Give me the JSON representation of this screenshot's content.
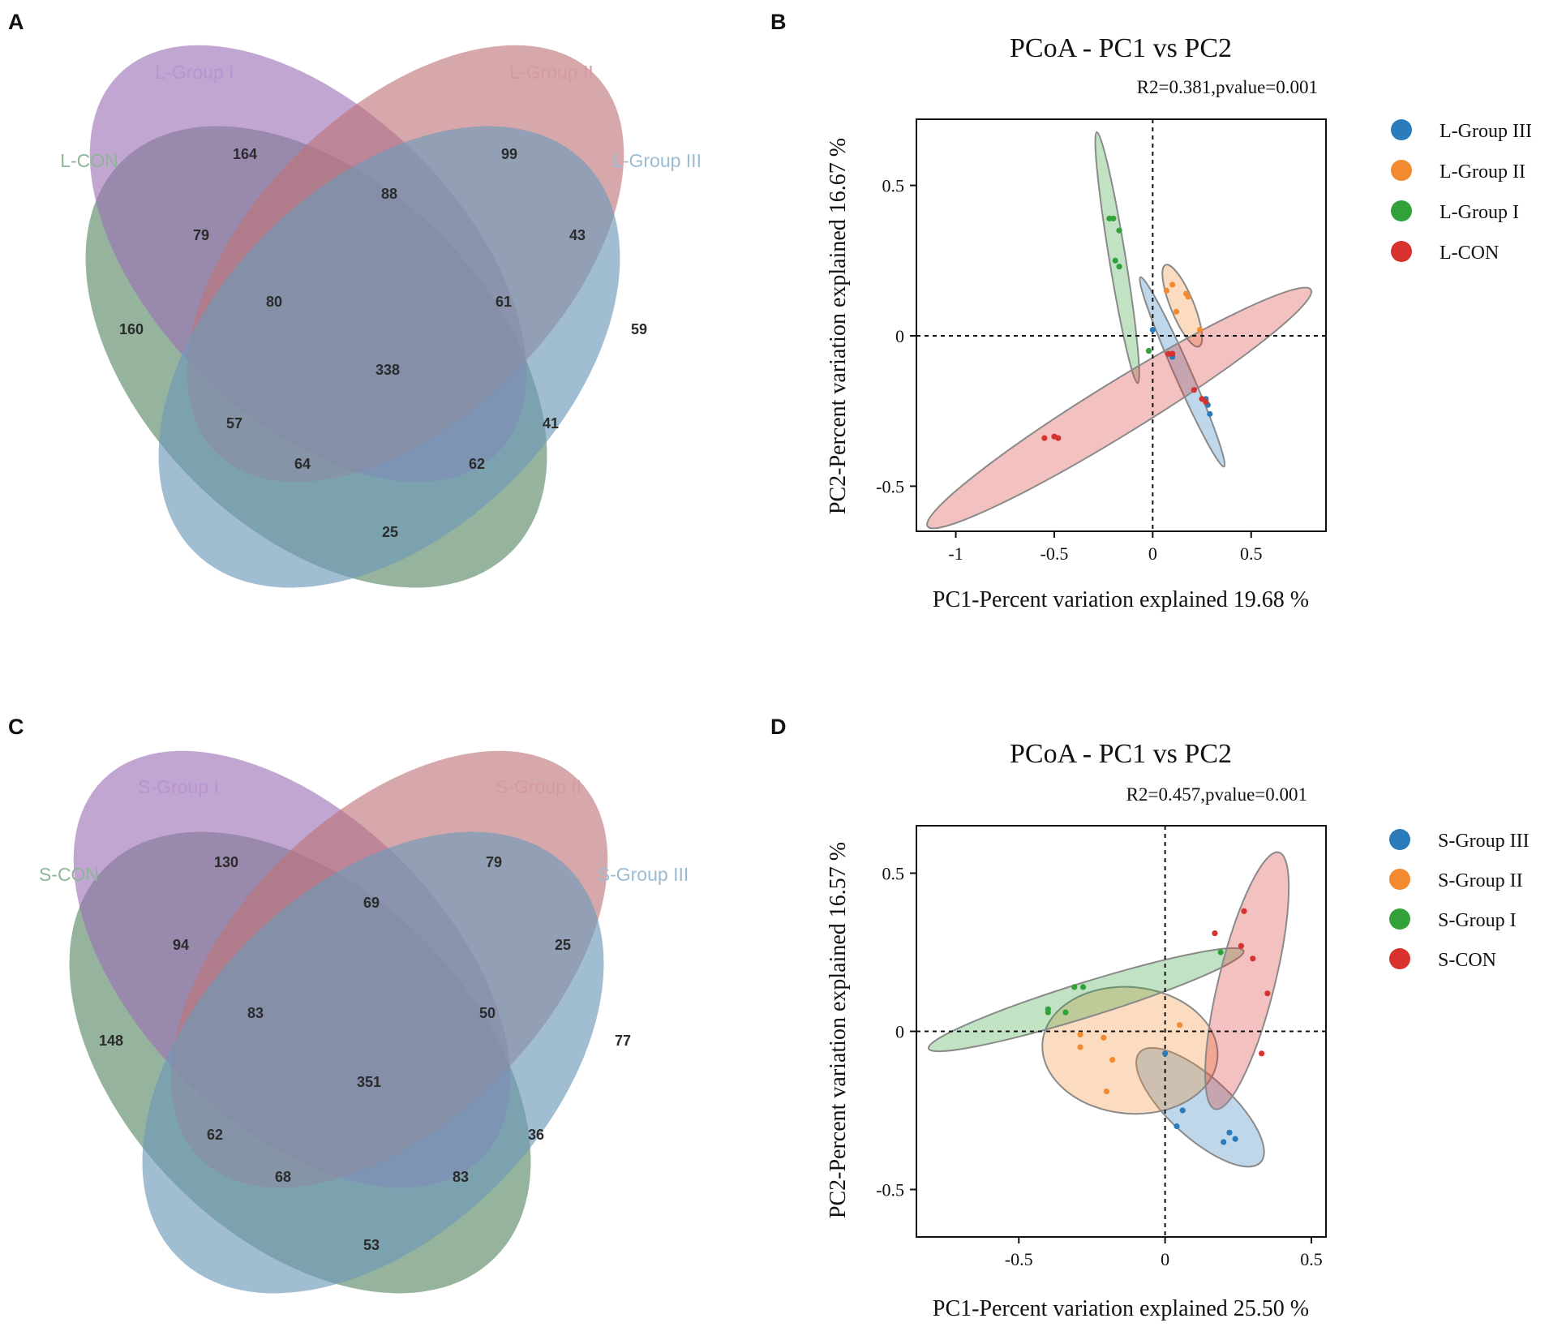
{
  "panels": {
    "A": {
      "letter": "A"
    },
    "B": {
      "letter": "B"
    },
    "C": {
      "letter": "C"
    },
    "D": {
      "letter": "D"
    }
  },
  "colors": {
    "con": "#5e8a68",
    "group1": "#9b6fb4",
    "group2": "#bf7378",
    "group3": "#6f9ab9",
    "blue": "#2b7bba",
    "orange": "#f28a2f",
    "green": "#33a13a",
    "red": "#d8322f"
  },
  "chart_data": [
    {
      "id": "venn-L",
      "type": "venn",
      "sets": [
        "L-CON",
        "L-Group I",
        "L-Group II",
        "L-Group III"
      ],
      "regions": {
        "L-CON only": 160,
        "L-Group I only": 164,
        "L-Group II only": 99,
        "L-Group III only": 59,
        "L-CON & L-Group I": 79,
        "L-Group I & L-Group II": 88,
        "L-Group II & L-Group III": 43,
        "L-CON & L-Group I & L-Group II": 80,
        "L-Group I & L-Group II & L-Group III": 61,
        "all four": 338,
        "L-CON & L-Group II": 57,
        "L-Group I & L-Group III": 41,
        "L-CON & L-Group II & L-Group III": 64,
        "L-CON & L-Group I & L-Group III": 62,
        "L-CON & L-Group III": 25
      }
    },
    {
      "id": "pcoa-L",
      "type": "scatter",
      "title": "PCoA - PC1 vs PC2",
      "stat": "R2=0.381,pvalue=0.001",
      "xlabel": "PC1-Percent variation explained 19.68 %",
      "ylabel": "PC2-Percent variation explained 16.67 %",
      "xlim": [
        -1.2,
        0.88
      ],
      "ylim": [
        -0.65,
        0.72
      ],
      "xticks": [
        -1,
        -0.5,
        0,
        0.5
      ],
      "xtick_labels": [
        "-1",
        "-0.5",
        "0",
        "0.5"
      ],
      "yticks": [
        -0.5,
        0,
        0.5
      ],
      "ytick_labels": [
        "-0.5",
        "0",
        "0.5"
      ],
      "legend": [
        "L-Group III",
        "L-Group II",
        "L-Group I",
        "L-CON"
      ],
      "series": [
        {
          "name": "L-Group III",
          "color": "#2b7bba",
          "points": [
            [
              0.0,
              0.02
            ],
            [
              0.1,
              -0.07
            ],
            [
              0.1,
              -0.06
            ],
            [
              0.27,
              -0.21
            ],
            [
              0.28,
              -0.23
            ],
            [
              0.29,
              -0.26
            ]
          ],
          "ellipse": {
            "cx": 0.15,
            "cy": -0.12,
            "rx": 0.38,
            "ry": 0.035,
            "angle": -56
          }
        },
        {
          "name": "L-Group II",
          "color": "#f28a2f",
          "points": [
            [
              0.07,
              0.15
            ],
            [
              0.1,
              0.17
            ],
            [
              0.12,
              0.08
            ],
            [
              0.17,
              0.14
            ],
            [
              0.18,
              0.13
            ],
            [
              0.24,
              0.02
            ]
          ],
          "ellipse": {
            "cx": 0.15,
            "cy": 0.1,
            "rx": 0.16,
            "ry": 0.05,
            "angle": -58
          }
        },
        {
          "name": "L-Group I",
          "color": "#33a13a",
          "points": [
            [
              -0.22,
              0.39
            ],
            [
              -0.2,
              0.39
            ],
            [
              -0.17,
              0.35
            ],
            [
              -0.19,
              0.25
            ],
            [
              -0.17,
              0.23
            ],
            [
              -0.02,
              -0.05
            ]
          ],
          "ellipse": {
            "cx": -0.18,
            "cy": 0.26,
            "rx": 0.43,
            "ry": 0.04,
            "angle": -76
          }
        },
        {
          "name": "L-CON",
          "color": "#d8322f",
          "points": [
            [
              -0.55,
              -0.34
            ],
            [
              -0.5,
              -0.335
            ],
            [
              -0.48,
              -0.34
            ],
            [
              0.08,
              -0.06
            ],
            [
              0.1,
              -0.06
            ],
            [
              0.21,
              -0.18
            ],
            [
              0.25,
              -0.21
            ],
            [
              0.27,
              -0.22
            ]
          ],
          "ellipse": {
            "cx": -0.17,
            "cy": -0.24,
            "rx": 1.05,
            "ry": 0.09,
            "angle": 22
          }
        }
      ]
    },
    {
      "id": "venn-S",
      "type": "venn",
      "sets": [
        "S-CON",
        "S-Group I",
        "S-Group II",
        "S-Group III"
      ],
      "regions": {
        "S-CON only": 148,
        "S-Group I only": 130,
        "S-Group II only": 79,
        "S-Group III only": 77,
        "S-CON & S-Group I": 94,
        "S-Group I & S-Group II": 69,
        "S-Group II & S-Group III": 25,
        "S-CON & S-Group I & S-Group II": 83,
        "S-Group I & S-Group II & S-Group III": 50,
        "all four": 351,
        "S-CON & S-Group II": 62,
        "S-Group I & S-Group III": 36,
        "S-CON & S-Group II & S-Group III": 68,
        "S-CON & S-Group I & S-Group III": 83,
        "S-CON & S-Group III": 53
      }
    },
    {
      "id": "pcoa-S",
      "type": "scatter",
      "title": "PCoA - PC1 vs PC2",
      "stat": "R2=0.457,pvalue=0.001",
      "xlabel": "PC1-Percent variation explained 25.50 %",
      "ylabel": "PC2-Percent variation explained 16.57 %",
      "xlim": [
        -0.85,
        0.55
      ],
      "ylim": [
        -0.65,
        0.65
      ],
      "xticks": [
        -0.5,
        0,
        0.5
      ],
      "xtick_labels": [
        "-0.5",
        "0",
        "0.5"
      ],
      "yticks": [
        -0.5,
        0,
        0.5
      ],
      "ytick_labels": [
        "-0.5",
        "0",
        "0.5"
      ],
      "legend": [
        "S-Group III",
        "S-Group II",
        "S-Group I",
        "S-CON"
      ],
      "series": [
        {
          "name": "S-Group III",
          "color": "#2b7bba",
          "points": [
            [
              0.0,
              -0.07
            ],
            [
              0.04,
              -0.3
            ],
            [
              0.06,
              -0.25
            ],
            [
              0.2,
              -0.35
            ],
            [
              0.22,
              -0.32
            ],
            [
              0.24,
              -0.34
            ]
          ],
          "ellipse": {
            "cx": 0.12,
            "cy": -0.24,
            "rx": 0.27,
            "ry": 0.1,
            "angle": -40
          }
        },
        {
          "name": "S-Group II",
          "color": "#f28a2f",
          "points": [
            [
              -0.29,
              -0.01
            ],
            [
              -0.29,
              -0.05
            ],
            [
              -0.21,
              -0.02
            ],
            [
              -0.18,
              -0.09
            ],
            [
              -0.2,
              -0.19
            ],
            [
              0.05,
              0.02
            ]
          ],
          "ellipse": {
            "cx": -0.12,
            "cy": -0.06,
            "rx": 0.3,
            "ry": 0.2,
            "angle": -5
          }
        },
        {
          "name": "S-Group I",
          "color": "#33a13a",
          "points": [
            [
              -0.4,
              0.06
            ],
            [
              -0.4,
              0.07
            ],
            [
              -0.34,
              0.06
            ],
            [
              -0.31,
              0.14
            ],
            [
              -0.28,
              0.14
            ],
            [
              0.19,
              0.25
            ]
          ],
          "ellipse": {
            "cx": -0.27,
            "cy": 0.1,
            "rx": 0.56,
            "ry": 0.055,
            "angle": 16
          }
        },
        {
          "name": "S-CON",
          "color": "#d8322f",
          "points": [
            [
              0.17,
              0.31
            ],
            [
              0.27,
              0.38
            ],
            [
              0.26,
              0.27
            ],
            [
              0.3,
              0.23
            ],
            [
              0.35,
              0.12
            ],
            [
              0.33,
              -0.07
            ]
          ],
          "ellipse": {
            "cx": 0.28,
            "cy": 0.16,
            "rx": 0.42,
            "ry": 0.095,
            "angle": 75
          }
        }
      ]
    }
  ]
}
